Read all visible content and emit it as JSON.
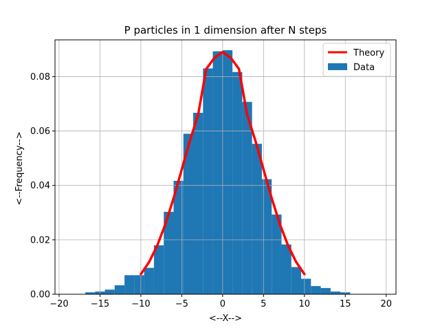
{
  "chart_data": {
    "type": "bar",
    "title": "P particles in 1 dimension after N steps",
    "xlabel": "<--X-->",
    "ylabel": "<--Frequency-->",
    "xlim": [
      -20.5,
      21.2
    ],
    "ylim": [
      0,
      0.0935
    ],
    "xticks": [
      -20,
      -15,
      -10,
      -5,
      0,
      5,
      10,
      15,
      20
    ],
    "xtick_labels": [
      "−20",
      "−15",
      "−10",
      "−5",
      "0",
      "5",
      "10",
      "15",
      "20"
    ],
    "yticks": [
      0.0,
      0.02,
      0.04,
      0.06,
      0.08
    ],
    "ytick_labels": [
      "0.00",
      "0.02",
      "0.04",
      "0.06",
      "0.08"
    ],
    "grid": true,
    "legend_position": "top-right",
    "legend": [
      "Theory",
      "Data"
    ],
    "colors": {
      "data": "#1f77b4",
      "theory": "#ff0000",
      "grid": "#b0b0b0"
    },
    "histogram": {
      "name": "Data",
      "bin_width": 1.2,
      "bins": [
        {
          "x": -16.2,
          "value": 0.0007
        },
        {
          "x": -15.0,
          "value": 0.001
        },
        {
          "x": -13.8,
          "value": 0.0017
        },
        {
          "x": -12.6,
          "value": 0.0033
        },
        {
          "x": -11.4,
          "value": 0.007
        },
        {
          "x": -10.2,
          "value": 0.007
        },
        {
          "x": -9.0,
          "value": 0.0097
        },
        {
          "x": -7.8,
          "value": 0.018
        },
        {
          "x": -6.6,
          "value": 0.0303
        },
        {
          "x": -5.4,
          "value": 0.0417
        },
        {
          "x": -4.2,
          "value": 0.059
        },
        {
          "x": -3.0,
          "value": 0.0667
        },
        {
          "x": -1.8,
          "value": 0.083
        },
        {
          "x": -0.6,
          "value": 0.0893
        },
        {
          "x": 0.6,
          "value": 0.0897
        },
        {
          "x": 1.8,
          "value": 0.0817
        },
        {
          "x": 3.0,
          "value": 0.0707
        },
        {
          "x": 4.2,
          "value": 0.0553
        },
        {
          "x": 5.4,
          "value": 0.0423
        },
        {
          "x": 6.6,
          "value": 0.0293
        },
        {
          "x": 7.8,
          "value": 0.0183
        },
        {
          "x": 9.0,
          "value": 0.01
        },
        {
          "x": 10.2,
          "value": 0.0057
        },
        {
          "x": 11.4,
          "value": 0.003
        },
        {
          "x": 12.6,
          "value": 0.0023
        },
        {
          "x": 13.8,
          "value": 0.001
        },
        {
          "x": 15.0,
          "value": 0.0007
        }
      ]
    },
    "theory": {
      "name": "Theory",
      "x": [
        -10,
        -9,
        -8,
        -7,
        -6,
        -5,
        -4,
        -3,
        -2,
        -1,
        0,
        1,
        2,
        3,
        4,
        5,
        6,
        7,
        8,
        9,
        10
      ],
      "y": [
        0.0074,
        0.0118,
        0.0179,
        0.0258,
        0.0353,
        0.0459,
        0.0565,
        0.066,
        0.0828,
        0.0869,
        0.089,
        0.0869,
        0.0828,
        0.066,
        0.0565,
        0.0459,
        0.0353,
        0.0258,
        0.0179,
        0.0118,
        0.0074
      ]
    }
  }
}
